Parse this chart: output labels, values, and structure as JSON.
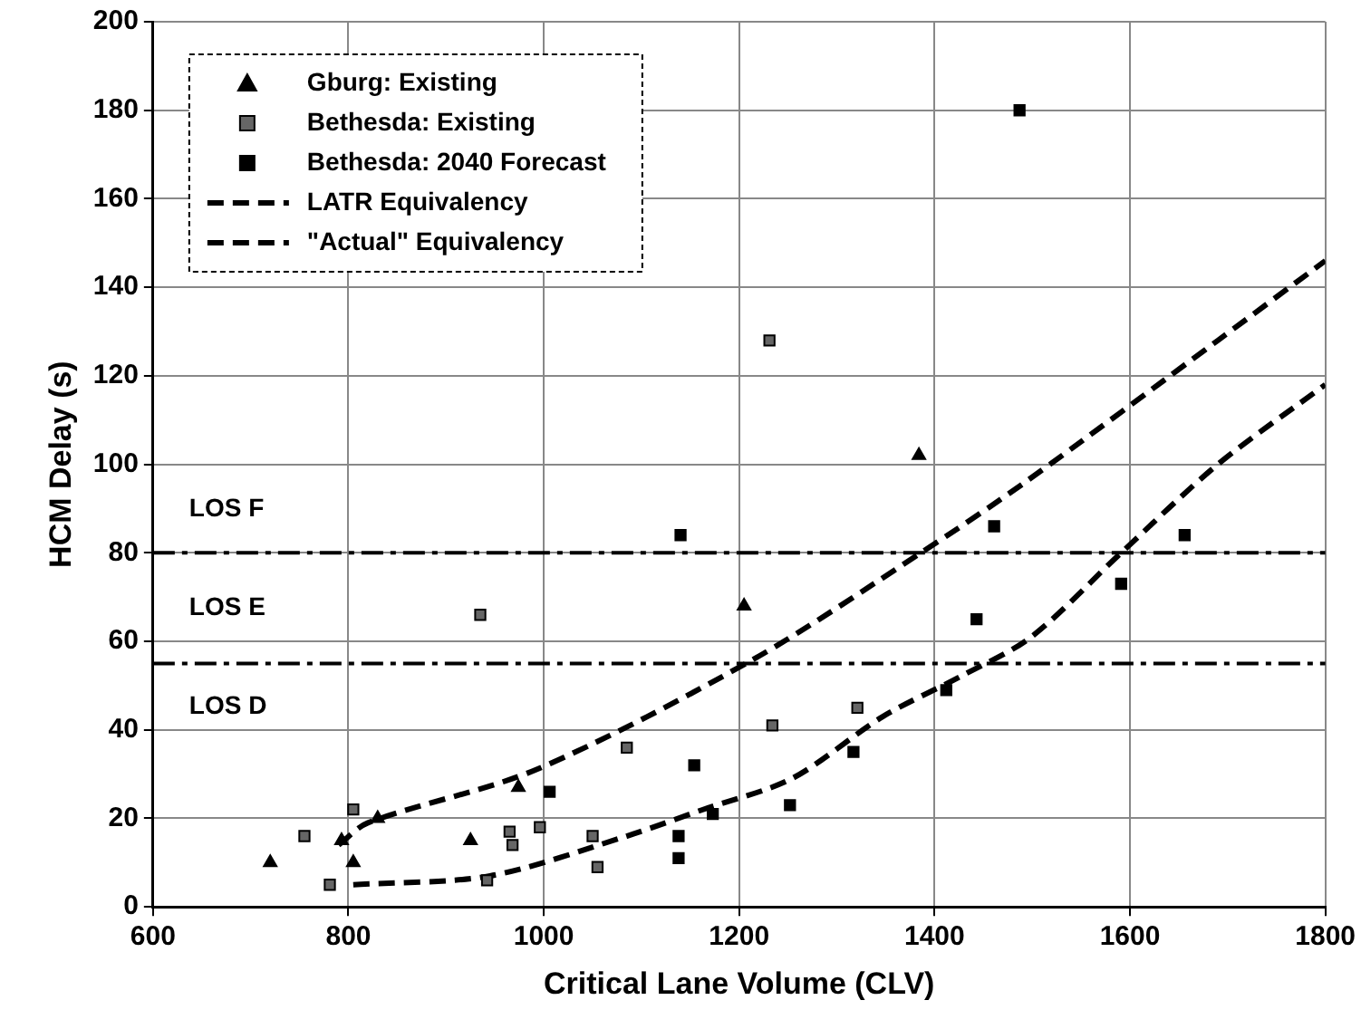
{
  "chart_data": {
    "type": "scatter",
    "xlabel": "Critical Lane Volume (CLV)",
    "ylabel": "HCM Delay (s)",
    "xlim": [
      600,
      1800
    ],
    "xticks": [
      600,
      800,
      1000,
      1200,
      1400,
      1600,
      1800
    ],
    "ylim": [
      0,
      200
    ],
    "yticks": [
      0,
      20,
      40,
      60,
      80,
      100,
      120,
      140,
      160,
      180,
      200
    ],
    "grid": true,
    "legend": "top left",
    "series": [
      {
        "name": "Gburg: Existing",
        "type": "scatter",
        "marker": "triangle",
        "color": "#000000",
        "x": [
          720,
          793,
          805,
          830,
          925,
          974,
          1205,
          1384
        ],
        "values": [
          10,
          15,
          10,
          20,
          15,
          27,
          68,
          102
        ]
      },
      {
        "name": "Bethesda: Existing",
        "type": "scatter",
        "marker": "square",
        "color": "#666666",
        "x": [
          755,
          781,
          805,
          935,
          942,
          965,
          968,
          996,
          1050,
          1055,
          1085,
          1231,
          1234,
          1321
        ],
        "values": [
          16,
          5,
          22,
          66,
          6,
          17,
          14,
          18,
          16,
          9,
          36,
          128,
          41,
          45
        ]
      },
      {
        "name": "Bethesda: 2040 Forecast",
        "type": "scatter",
        "marker": "square",
        "color": "#000000",
        "x": [
          1006,
          1138,
          1138,
          1140,
          1154,
          1173,
          1252,
          1317,
          1412,
          1443,
          1461,
          1487,
          1591,
          1656
        ],
        "values": [
          26,
          11,
          16,
          84,
          32,
          21,
          23,
          35,
          49,
          65,
          86,
          180,
          73,
          84
        ]
      },
      {
        "name": "LATR Equivalency",
        "type": "line",
        "marker": "none",
        "line_style": "dashed",
        "color": "#000000",
        "x": [
          805,
          945,
          1085,
          1163,
          1254,
          1347,
          1426,
          1499,
          1591,
          1690,
          1800
        ],
        "values": [
          5,
          7,
          16,
          22,
          29,
          43,
          52,
          61,
          80,
          100,
          118
        ]
      },
      {
        "name": "\"Actual\" Equivalency",
        "type": "line",
        "marker": "none",
        "line_style": "dashed",
        "color": "#000000",
        "x": [
          790,
          820,
          992,
          1215,
          1386,
          1493,
          1690,
          1800
        ],
        "values": [
          14,
          19,
          31,
          56,
          80,
          96,
          128,
          146
        ]
      }
    ],
    "ref_lines": [
      {
        "axis": "y",
        "value": 80,
        "line_style": "dashed",
        "color": "#000000"
      },
      {
        "axis": "y",
        "value": 55,
        "line_style": "dashed",
        "color": "#000000"
      }
    ],
    "annotations": [
      "LOS F",
      "LOS E",
      "LOS D"
    ]
  }
}
